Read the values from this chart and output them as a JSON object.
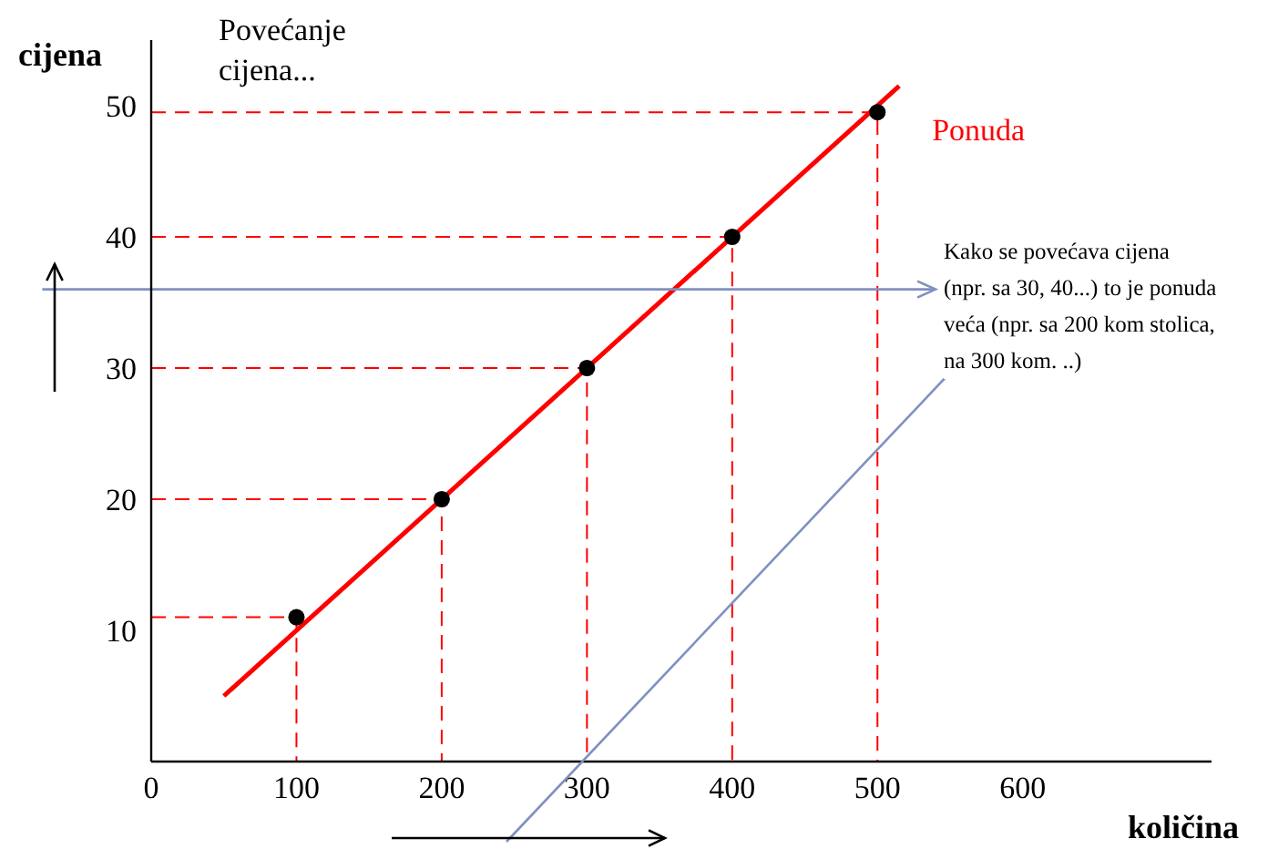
{
  "chart_data": {
    "type": "line",
    "xlabel": "količina",
    "ylabel": "cijena",
    "xlim": [
      0,
      730
    ],
    "ylim": [
      0,
      55
    ],
    "xticks": [
      0,
      100,
      200,
      300,
      400,
      500,
      600
    ],
    "yticks": [
      10,
      20,
      30,
      40,
      50
    ],
    "grid": false,
    "legend": false,
    "annotations": [
      "Povećanje cijena...",
      "Kako se povećava cijena (npr. sa 30, 40...) to je ponuda veća (npr. sa 200 kom stolica, na 300 kom. ..)"
    ],
    "ref_lines": [
      {
        "axis": "y",
        "value": 36,
        "color": "#8090c0"
      }
    ],
    "series": [
      {
        "color": "#ff0000",
        "marker": "none",
        "line_style": "dashed",
        "x": [
          0,
          100,
          100
        ],
        "values": [
          11,
          11,
          0
        ]
      },
      {
        "color": "#ff0000",
        "marker": "none",
        "line_style": "dashed",
        "x": [
          0,
          200,
          200
        ],
        "values": [
          20,
          20,
          0
        ]
      },
      {
        "color": "#ff0000",
        "marker": "none",
        "line_style": "dashed",
        "x": [
          0,
          300,
          300
        ],
        "values": [
          30,
          30,
          0
        ]
      },
      {
        "color": "#ff0000",
        "marker": "none",
        "line_style": "dashed",
        "x": [
          0,
          400,
          400
        ],
        "values": [
          40,
          40,
          0
        ]
      },
      {
        "color": "#ff0000",
        "marker": "none",
        "line_style": "dashed",
        "x": [
          0,
          500,
          500
        ],
        "values": [
          49.5,
          49.5,
          0
        ]
      },
      {
        "name": "Ponuda",
        "type": "line",
        "color": "#ff0000",
        "marker": "none",
        "line_style": "solid",
        "x": [
          50,
          515
        ],
        "values": [
          5,
          51.5
        ]
      },
      {
        "type": "scatter",
        "color": "#000000",
        "marker": "circle",
        "x": [
          100,
          200,
          300,
          400,
          500
        ],
        "values": [
          11,
          20,
          30,
          40,
          49.5
        ]
      }
    ]
  }
}
